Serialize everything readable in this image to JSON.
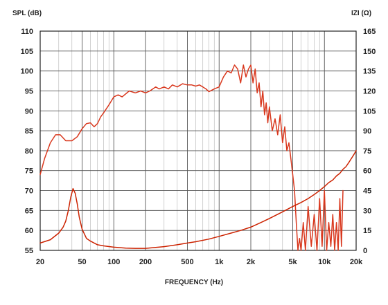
{
  "chart_data": {
    "type": "line",
    "ylabel": "SPL (dB)",
    "y2label": "IZI (Ω)",
    "xlabel": "FREQUENCY (Hz)",
    "x_scale": "log",
    "xlim": [
      20,
      20000
    ],
    "ylim": [
      55,
      110
    ],
    "y2lim": [
      0,
      165
    ],
    "grid": true,
    "x_ticks": [
      {
        "value": 20,
        "label": "20"
      },
      {
        "value": 50,
        "label": "50"
      },
      {
        "value": 100,
        "label": "100"
      },
      {
        "value": 200,
        "label": "200"
      },
      {
        "value": 500,
        "label": "500"
      },
      {
        "value": 1000,
        "label": "1k"
      },
      {
        "value": 2000,
        "label": "2k"
      },
      {
        "value": 5000,
        "label": "5k"
      },
      {
        "value": 10000,
        "label": "10k"
      },
      {
        "value": 20000,
        "label": "20k"
      }
    ],
    "y_ticks": [
      "55",
      "60",
      "65",
      "70",
      "75",
      "80",
      "85",
      "90",
      "95",
      "100",
      "105",
      "110"
    ],
    "y2_ticks": [
      "0",
      "15",
      "30",
      "45",
      "60",
      "75",
      "90",
      "105",
      "120",
      "135",
      "150",
      "165"
    ],
    "colors": {
      "spl": "#d9381e",
      "impedance": "#cc2200"
    },
    "series": [
      {
        "key": "spl",
        "axis": "left",
        "x": [
          20,
          22,
          25,
          28,
          31,
          35,
          40,
          45,
          50,
          55,
          60,
          65,
          70,
          75,
          80,
          90,
          100,
          110,
          120,
          140,
          160,
          180,
          200,
          220,
          250,
          270,
          300,
          330,
          360,
          400,
          450,
          500,
          550,
          600,
          650,
          700,
          750,
          800,
          900,
          1000,
          1100,
          1200,
          1300,
          1400,
          1500,
          1600,
          1700,
          1800,
          1900,
          2000,
          2100,
          2200,
          2300,
          2400,
          2500,
          2600,
          2700,
          2800,
          2900,
          3000,
          3200,
          3400,
          3600,
          3800,
          4000,
          4200,
          4400,
          4600,
          4800,
          5000,
          5200,
          5400,
          5600,
          5800,
          6000,
          6300,
          6600,
          7000,
          7500,
          8000,
          8500,
          9000,
          9500,
          10000,
          10500,
          11000,
          11500,
          12000,
          12500,
          13000,
          13500,
          14000,
          14500,
          15000
        ],
        "y": [
          74,
          78,
          82,
          84,
          84,
          82.5,
          82.5,
          83.5,
          85.5,
          86.8,
          87,
          86,
          86.8,
          88.5,
          89.5,
          91.5,
          93.5,
          94,
          93.5,
          95,
          94.5,
          95,
          94.5,
          95,
          96,
          95.5,
          96,
          95.5,
          96.5,
          96,
          96.8,
          96.5,
          96.5,
          96.2,
          96.5,
          96,
          95.5,
          94.8,
          95.5,
          96,
          98.5,
          100,
          99.5,
          101.5,
          100.5,
          97,
          101.5,
          98.5,
          100.5,
          101.5,
          97,
          100.5,
          94.5,
          97,
          91,
          95,
          89,
          92,
          87,
          91,
          85,
          88,
          84,
          89,
          82,
          86,
          80,
          82,
          78,
          74,
          70,
          62,
          54,
          58,
          52,
          62,
          54,
          66,
          56,
          64,
          54,
          68,
          56,
          70,
          52,
          62,
          56,
          64,
          52,
          62,
          54,
          68,
          56,
          70
        ]
      },
      {
        "key": "impedance",
        "axis": "right",
        "x": [
          20,
          25,
          30,
          33,
          35,
          37,
          39,
          41,
          43,
          45,
          47,
          50,
          55,
          60,
          70,
          80,
          100,
          130,
          160,
          200,
          250,
          300,
          400,
          500,
          600,
          800,
          1000,
          1300,
          1600,
          2000,
          2500,
          3000,
          4000,
          5000,
          6000,
          7000,
          8000,
          9000,
          10000,
          11000,
          12000,
          13000,
          14000,
          15000,
          16000,
          17000,
          18000,
          19000,
          20000
        ],
        "y": [
          5.5,
          8,
          13,
          17.5,
          22,
          30,
          40,
          46.5,
          43,
          35,
          25,
          16,
          9,
          7,
          4.2,
          3.4,
          2.4,
          1.7,
          1.5,
          1.5,
          2.2,
          2.8,
          4.2,
          5.5,
          6.5,
          8.5,
          10.5,
          13,
          15,
          17.5,
          21,
          24,
          29,
          33,
          36,
          39,
          42,
          45,
          48,
          51,
          53,
          56,
          58,
          61,
          63,
          66,
          69,
          72,
          75
        ]
      }
    ]
  }
}
